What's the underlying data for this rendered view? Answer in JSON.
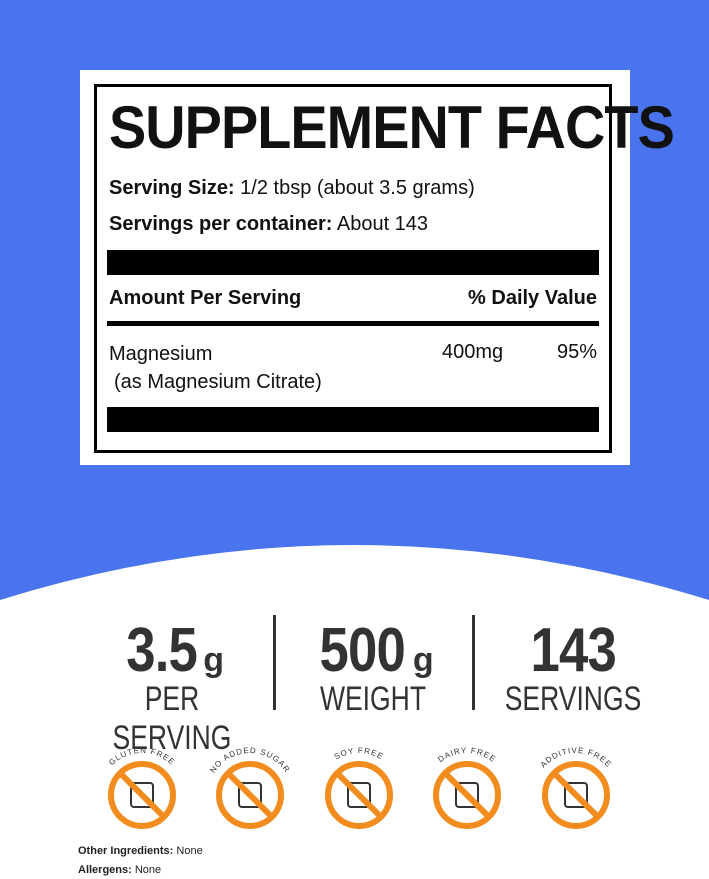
{
  "label": {
    "title": "SUPPLEMENT FACTS",
    "serving_size": {
      "label": "Serving Size:",
      "value": "1/2 tbsp (about 3.5 grams)"
    },
    "servings_per_container": {
      "label": "Servings per container:",
      "value": "About 143"
    },
    "header": {
      "amount": "Amount Per Serving",
      "daily_value": "% Daily Value"
    },
    "rows": [
      {
        "name": "Magnesium",
        "note": "(as Magnesium Citrate)",
        "amount": "400mg",
        "daily_value": "95%"
      }
    ]
  },
  "stats": [
    {
      "value": "3.5",
      "unit": "g",
      "label": "PER SERVING"
    },
    {
      "value": "500",
      "unit": "g",
      "label": "WEIGHT"
    },
    {
      "value": "143",
      "unit": "",
      "label": "SERVINGS"
    }
  ],
  "badges": [
    "GLUTEN FREE",
    "NO ADDED SUGAR",
    "SOY FREE",
    "DAIRY FREE",
    "ADDITIVE FREE"
  ],
  "footer": [
    {
      "label": "Other Ingredients:",
      "value": "None"
    },
    {
      "label": "Allergens:",
      "value": "None"
    }
  ]
}
